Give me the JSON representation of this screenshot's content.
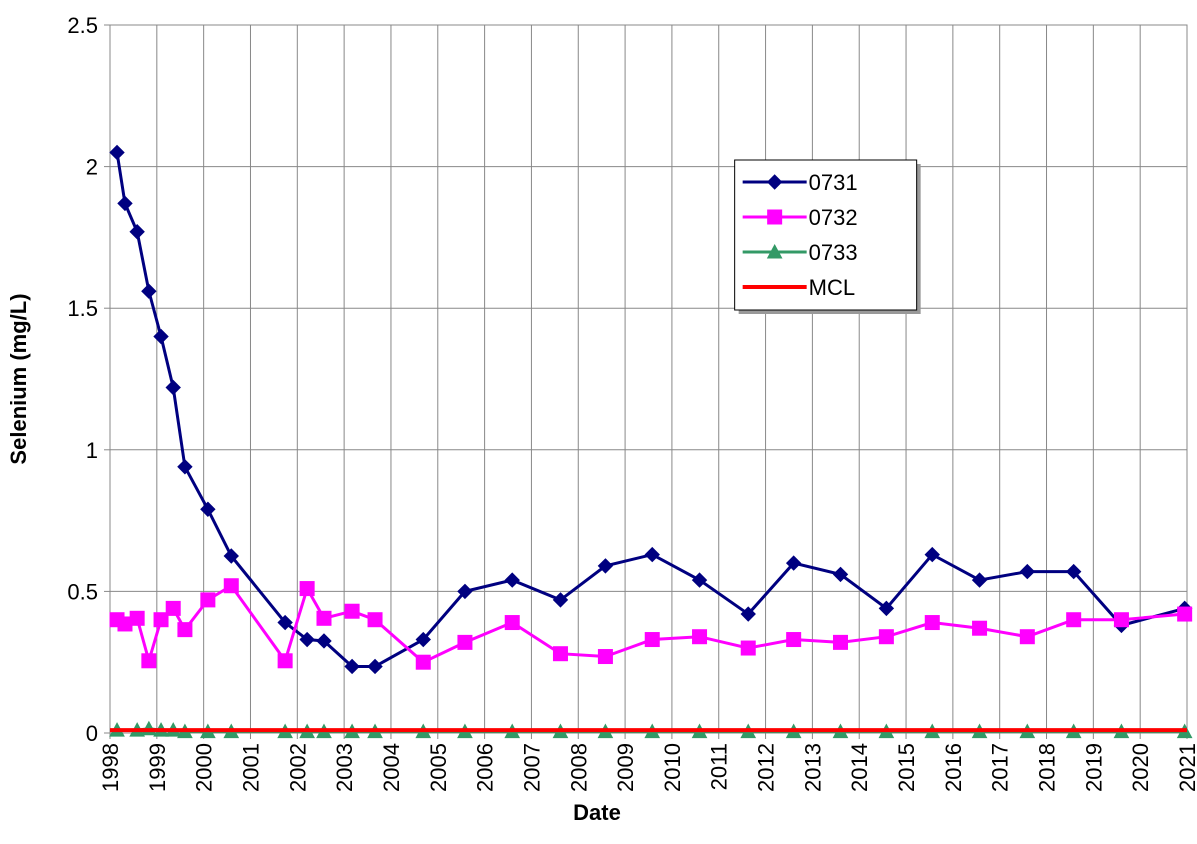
{
  "chart_data": {
    "type": "line",
    "y_label": "Selenium (mg/L)",
    "x_label": "Date",
    "xlim": [
      1998,
      2021
    ],
    "xticks": [
      1998,
      1999,
      2000,
      2001,
      2002,
      2003,
      2004,
      2005,
      2006,
      2007,
      2008,
      2009,
      2010,
      2011,
      2012,
      2013,
      2014,
      2015,
      2016,
      2017,
      2018,
      2019,
      2020,
      2021
    ],
    "ylim": [
      0,
      2.5
    ],
    "yticks": [
      0,
      0.5,
      1,
      1.5,
      2,
      2.5
    ],
    "grid": true,
    "legend_position": "upper center",
    "series": [
      {
        "name": "0731",
        "color": "#000080",
        "marker": "diamond",
        "x": [
          1998.15,
          1998.32,
          1998.58,
          1998.83,
          1999.09,
          1999.35,
          1999.6,
          2000.09,
          2000.59,
          2001.74,
          2002.21,
          2002.57,
          2003.17,
          2003.66,
          2004.69,
          2005.58,
          2006.59,
          2007.62,
          2008.58,
          2009.58,
          2010.59,
          2011.63,
          2012.6,
          2013.6,
          2014.58,
          2015.56,
          2016.57,
          2017.59,
          2018.58,
          2019.6,
          2020.95
        ],
        "values": [
          2.05,
          1.87,
          1.77,
          1.56,
          1.4,
          1.22,
          0.94,
          0.79,
          0.625,
          0.39,
          0.33,
          0.325,
          0.235,
          0.235,
          0.33,
          0.5,
          0.54,
          0.47,
          0.59,
          0.63,
          0.54,
          0.42,
          0.6,
          0.56,
          0.44,
          0.63,
          0.54,
          0.57,
          0.57,
          0.38,
          0.44
        ]
      },
      {
        "name": "0732",
        "color": "#ff00ff",
        "marker": "square",
        "x": [
          1998.15,
          1998.32,
          1998.58,
          1998.83,
          1999.09,
          1999.35,
          1999.6,
          2000.09,
          2000.59,
          2001.74,
          2002.21,
          2002.57,
          2003.17,
          2003.66,
          2004.69,
          2005.58,
          2006.59,
          2007.62,
          2008.58,
          2009.58,
          2010.59,
          2011.63,
          2012.6,
          2013.6,
          2014.58,
          2015.56,
          2016.57,
          2017.59,
          2018.58,
          2019.6,
          2020.95
        ],
        "values": [
          0.4,
          0.385,
          0.405,
          0.255,
          0.4,
          0.44,
          0.365,
          0.47,
          0.52,
          0.255,
          0.51,
          0.405,
          0.43,
          0.4,
          0.25,
          0.32,
          0.39,
          0.28,
          0.27,
          0.33,
          0.34,
          0.3,
          0.33,
          0.32,
          0.34,
          0.39,
          0.37,
          0.34,
          0.4,
          0.4,
          0.42
        ]
      },
      {
        "name": "0733",
        "color": "#339966",
        "marker": "triangle",
        "x": [
          1998.15,
          1998.58,
          1998.83,
          1999.09,
          1999.35,
          1999.6,
          2000.09,
          2000.59,
          2001.74,
          2002.21,
          2002.57,
          2003.17,
          2003.66,
          2004.69,
          2005.58,
          2006.59,
          2007.62,
          2008.58,
          2009.58,
          2010.59,
          2011.63,
          2012.6,
          2013.6,
          2014.58,
          2015.56,
          2016.57,
          2017.59,
          2018.58,
          2019.6,
          2020.95
        ],
        "values": [
          0.01,
          0.01,
          0.015,
          0.01,
          0.01,
          0.005,
          0.005,
          0.005,
          0.005,
          0.005,
          0.005,
          0.005,
          0.005,
          0.005,
          0.005,
          0.005,
          0.005,
          0.005,
          0.005,
          0.005,
          0.005,
          0.005,
          0.005,
          0.005,
          0.005,
          0.005,
          0.005,
          0.005,
          0.005,
          0.005
        ]
      },
      {
        "name": "MCL",
        "color": "#ff0000",
        "marker": "none",
        "x": [
          1998,
          2021
        ],
        "values": [
          0.01,
          0.01
        ]
      }
    ]
  }
}
